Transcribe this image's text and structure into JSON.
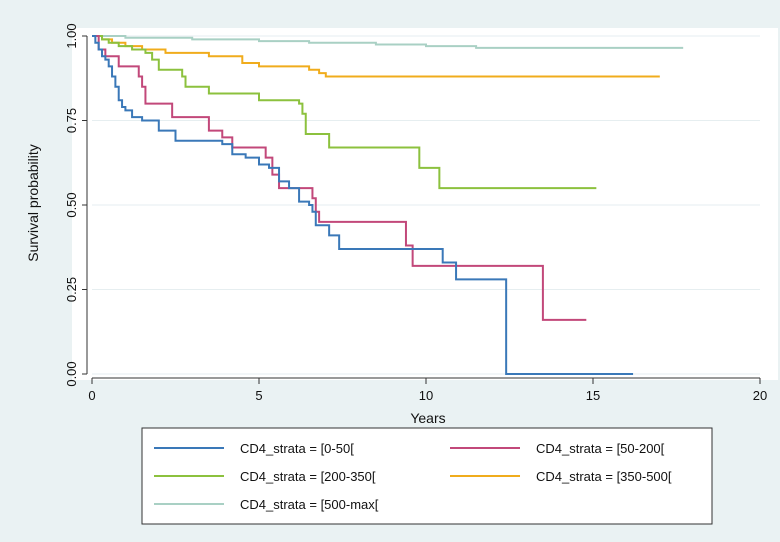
{
  "chart_data": {
    "type": "line",
    "step": true,
    "xlabel": "Years",
    "ylabel": "Survival probability",
    "xlim": [
      0,
      20
    ],
    "ylim": [
      0,
      1
    ],
    "xticks": [
      "0",
      "5",
      "10",
      "15",
      "20"
    ],
    "yticks": [
      "0.00",
      "0.25",
      "0.50",
      "0.75",
      "1.00"
    ],
    "grid": "horizontal",
    "legend_position": "bottom",
    "series": [
      {
        "name": "CD4_strata = [0-50[",
        "color": "#3a78b8",
        "points": [
          [
            0,
            1.0
          ],
          [
            0.1,
            0.98
          ],
          [
            0.2,
            0.96
          ],
          [
            0.3,
            0.94
          ],
          [
            0.4,
            0.93
          ],
          [
            0.5,
            0.91
          ],
          [
            0.6,
            0.88
          ],
          [
            0.7,
            0.85
          ],
          [
            0.8,
            0.81
          ],
          [
            0.9,
            0.79
          ],
          [
            1.0,
            0.78
          ],
          [
            1.2,
            0.76
          ],
          [
            1.5,
            0.75
          ],
          [
            2.0,
            0.72
          ],
          [
            2.5,
            0.69
          ],
          [
            3.5,
            0.69
          ],
          [
            3.9,
            0.68
          ],
          [
            4.2,
            0.65
          ],
          [
            4.6,
            0.64
          ],
          [
            5.0,
            0.62
          ],
          [
            5.3,
            0.61
          ],
          [
            5.6,
            0.57
          ],
          [
            5.9,
            0.55
          ],
          [
            6.2,
            0.51
          ],
          [
            6.5,
            0.5
          ],
          [
            6.6,
            0.48
          ],
          [
            6.7,
            0.44
          ],
          [
            7.1,
            0.41
          ],
          [
            7.4,
            0.37
          ],
          [
            10.5,
            0.33
          ],
          [
            10.9,
            0.28
          ],
          [
            12.4,
            0.0
          ],
          [
            16.2,
            0.0
          ]
        ]
      },
      {
        "name": "CD4_strata = [50-200[",
        "color": "#c2487a",
        "points": [
          [
            0,
            1.0
          ],
          [
            0.2,
            0.96
          ],
          [
            0.4,
            0.94
          ],
          [
            0.8,
            0.91
          ],
          [
            1.4,
            0.88
          ],
          [
            1.5,
            0.85
          ],
          [
            1.6,
            0.8
          ],
          [
            2.4,
            0.76
          ],
          [
            3.5,
            0.72
          ],
          [
            3.9,
            0.7
          ],
          [
            4.2,
            0.67
          ],
          [
            5.2,
            0.64
          ],
          [
            5.4,
            0.59
          ],
          [
            5.6,
            0.55
          ],
          [
            6.6,
            0.52
          ],
          [
            6.7,
            0.48
          ],
          [
            6.8,
            0.45
          ],
          [
            9.4,
            0.38
          ],
          [
            9.6,
            0.32
          ],
          [
            13.5,
            0.16
          ],
          [
            14.8,
            0.16
          ]
        ]
      },
      {
        "name": "CD4_strata = [200-350[",
        "color": "#8cc13e",
        "points": [
          [
            0,
            1.0
          ],
          [
            0.3,
            0.99
          ],
          [
            0.5,
            0.98
          ],
          [
            0.8,
            0.97
          ],
          [
            1.2,
            0.96
          ],
          [
            1.6,
            0.95
          ],
          [
            1.8,
            0.93
          ],
          [
            2.0,
            0.9
          ],
          [
            2.7,
            0.88
          ],
          [
            2.8,
            0.85
          ],
          [
            3.5,
            0.83
          ],
          [
            5.0,
            0.81
          ],
          [
            6.2,
            0.8
          ],
          [
            6.3,
            0.77
          ],
          [
            6.4,
            0.71
          ],
          [
            7.1,
            0.67
          ],
          [
            9.8,
            0.61
          ],
          [
            10.4,
            0.55
          ],
          [
            15.1,
            0.55
          ]
        ]
      },
      {
        "name": "CD4_strata = [350-500[",
        "color": "#f0ac1c",
        "points": [
          [
            0,
            1.0
          ],
          [
            0.3,
            0.99
          ],
          [
            0.6,
            0.98
          ],
          [
            1.0,
            0.97
          ],
          [
            1.5,
            0.96
          ],
          [
            2.2,
            0.95
          ],
          [
            3.5,
            0.94
          ],
          [
            4.5,
            0.92
          ],
          [
            5.0,
            0.91
          ],
          [
            6.5,
            0.9
          ],
          [
            6.8,
            0.89
          ],
          [
            7.0,
            0.88
          ],
          [
            17.0,
            0.88
          ]
        ]
      },
      {
        "name": "CD4_strata = [500-max[",
        "color": "#a9d0c4",
        "points": [
          [
            0,
            1.0
          ],
          [
            1.0,
            0.995
          ],
          [
            3.0,
            0.99
          ],
          [
            5.0,
            0.985
          ],
          [
            6.5,
            0.98
          ],
          [
            8.5,
            0.975
          ],
          [
            10.0,
            0.97
          ],
          [
            11.5,
            0.965
          ],
          [
            17.7,
            0.965
          ]
        ]
      }
    ]
  }
}
